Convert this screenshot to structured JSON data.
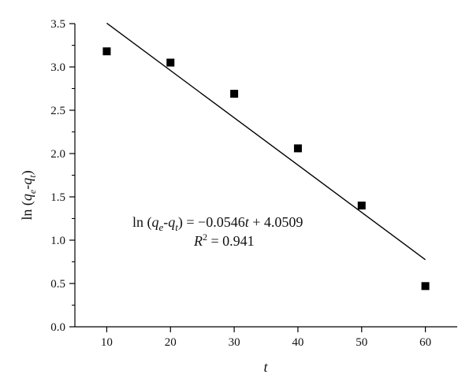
{
  "chart_data": {
    "type": "scatter",
    "title": "",
    "xlabel": "t",
    "ylabel": "ln (q_e-q_t)",
    "xlim": [
      5,
      65
    ],
    "ylim": [
      0.0,
      3.5
    ],
    "x_ticks": [
      10,
      20,
      30,
      40,
      50,
      60
    ],
    "y_ticks": [
      0.0,
      0.5,
      1.0,
      1.5,
      2.0,
      2.5,
      3.0,
      3.5
    ],
    "x_tick_labels": [
      "10",
      "20",
      "30",
      "40",
      "50",
      "60"
    ],
    "y_tick_labels": [
      "0.0",
      "0.5",
      "1.0",
      "1.5",
      "2.0",
      "2.5",
      "3.0",
      "3.5"
    ],
    "grid": false,
    "legend": "none",
    "marker": "square",
    "marker_color": "#000000",
    "series": [
      {
        "x": [
          10,
          20,
          30,
          40,
          50,
          60
        ],
        "y": [
          3.18,
          3.05,
          2.69,
          2.06,
          1.4,
          0.47
        ]
      }
    ],
    "fit_line": {
      "slope": -0.0546,
      "intercept": 4.0509,
      "x_range": [
        10,
        60
      ],
      "color": "#000000"
    },
    "annotations": {
      "equation": "ln (qe-qt) = −0.0546t + 4.0509",
      "r_squared": "R2 = 0.941"
    }
  }
}
